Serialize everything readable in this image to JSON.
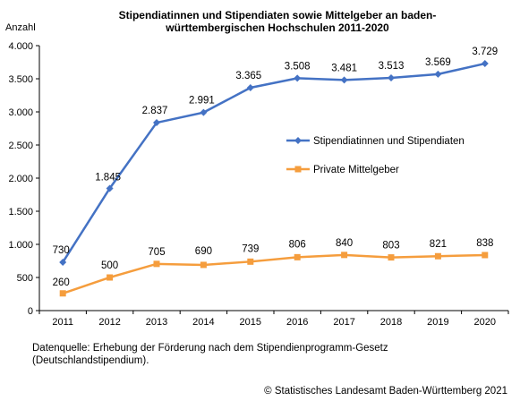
{
  "chart_data": {
    "type": "line",
    "title_line1": "Stipendiatinnen und Stipendiaten sowie Mittelgeber an baden-",
    "title_line2": "württembergischen Hochschulen 2011-2020",
    "ylabel": "Anzahl",
    "x": [
      "2011",
      "2012",
      "2013",
      "2014",
      "2015",
      "2016",
      "2017",
      "2018",
      "2019",
      "2020"
    ],
    "ylim": [
      0,
      4000
    ],
    "yticks": [
      0,
      500,
      1000,
      1500,
      2000,
      2500,
      3000,
      3500,
      4000
    ],
    "ytick_labels": [
      "0",
      "500",
      "1.000",
      "1.500",
      "2.000",
      "2.500",
      "3.000",
      "3.500",
      "4.000"
    ],
    "series": [
      {
        "name": "Stipendiatinnen und Stipendiaten",
        "color": "#4472c4",
        "marker": "diamond",
        "values": [
          730,
          1845,
          2837,
          2991,
          3365,
          3508,
          3481,
          3513,
          3569,
          3729
        ],
        "labels": [
          "730",
          "1.845",
          "2.837",
          "2.991",
          "3.365",
          "3.508",
          "3.481",
          "3.513",
          "3.569",
          "3.729"
        ]
      },
      {
        "name": "Private Mittelgeber",
        "color": "#f59d3d",
        "marker": "square",
        "values": [
          260,
          500,
          705,
          690,
          739,
          806,
          840,
          803,
          821,
          838
        ],
        "labels": [
          "260",
          "500",
          "705",
          "690",
          "739",
          "806",
          "840",
          "803",
          "821",
          "838"
        ]
      }
    ],
    "legend_position": "right-center",
    "grid": false
  },
  "footer": {
    "source": "Datenquelle: Erhebung der Förderung nach dem Stipendienprogramm-Gesetz (Deutschlandstipendium).",
    "copyright": "© Statistisches Landesamt Baden-Württemberg 2021"
  }
}
